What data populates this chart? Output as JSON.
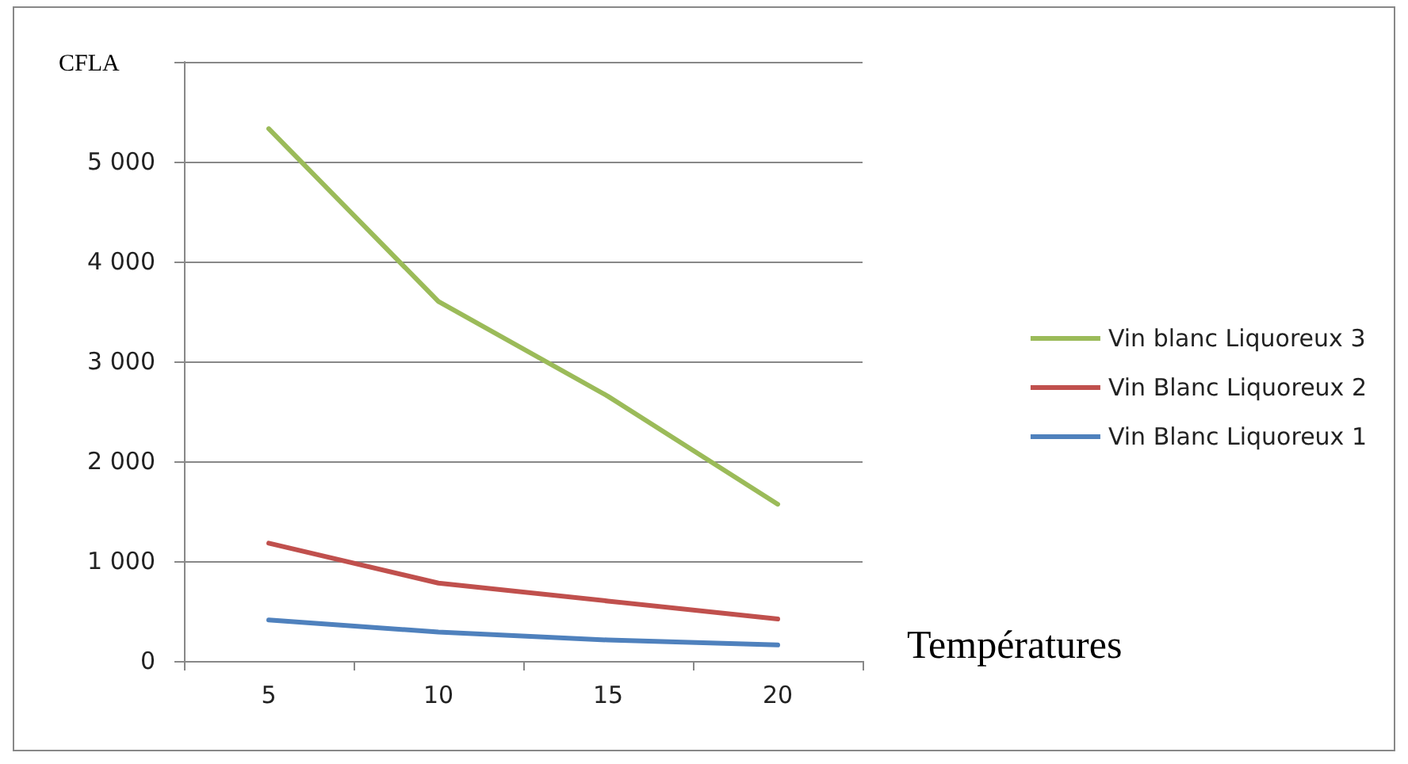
{
  "chart_data": {
    "type": "line",
    "ylabel": "CFLA",
    "xlabel": "Températures",
    "categories": [
      "5",
      "10",
      "15",
      "20"
    ],
    "series": [
      {
        "name": "Vin blanc Liquoreux 3",
        "color": "#9bbb59",
        "values": [
          5330,
          3600,
          2650,
          1570
        ]
      },
      {
        "name": "Vin Blanc Liquoreux 2",
        "color": "#c0504d",
        "values": [
          1180,
          780,
          600,
          420
        ]
      },
      {
        "name": "Vin Blanc Liquoreux 1",
        "color": "#4f81bd",
        "values": [
          410,
          290,
          210,
          160
        ]
      }
    ],
    "ylim": [
      0,
      6000
    ],
    "yticks": [
      0,
      {
        "value": 1000,
        "label": "1 000"
      },
      {
        "value": 2000,
        "label": "2 000"
      },
      {
        "value": 3000,
        "label": "3 000"
      },
      {
        "value": 4000,
        "label": "4 000"
      },
      {
        "value": 5000,
        "label": "5 000"
      },
      {
        "value": 6000,
        "label": null
      }
    ],
    "grid": "y",
    "legend": "right",
    "marker": "none",
    "line_style": "solid"
  }
}
